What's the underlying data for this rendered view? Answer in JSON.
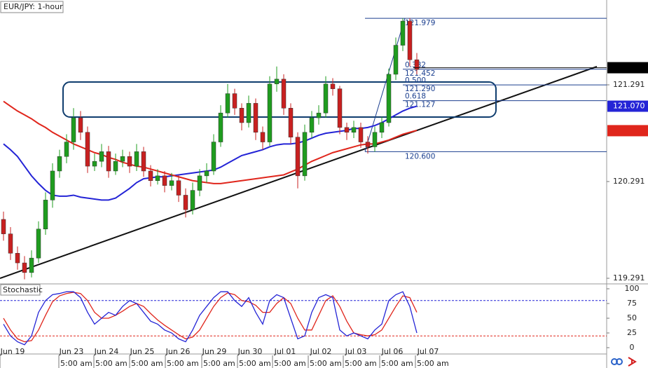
{
  "chart_data": {
    "type": "candlestick",
    "title": "EUR/JPY: 1-hour",
    "up_color": "#1f9c1f",
    "down_color": "#c82020",
    "candles": [
      [
        119.9,
        119.98,
        119.68,
        119.75
      ],
      [
        119.75,
        119.82,
        119.48,
        119.55
      ],
      [
        119.55,
        119.62,
        119.38,
        119.45
      ],
      [
        119.45,
        119.52,
        119.28,
        119.35
      ],
      [
        119.35,
        119.58,
        119.3,
        119.5
      ],
      [
        119.5,
        119.88,
        119.45,
        119.8
      ],
      [
        119.8,
        120.18,
        119.74,
        120.1
      ],
      [
        120.1,
        120.48,
        120.02,
        120.4
      ],
      [
        120.4,
        120.62,
        120.33,
        120.55
      ],
      [
        120.55,
        120.78,
        120.48,
        120.7
      ],
      [
        120.7,
        121.05,
        120.62,
        120.95
      ],
      [
        120.95,
        121.02,
        120.72,
        120.8
      ],
      [
        120.8,
        120.86,
        120.38,
        120.45
      ],
      [
        120.45,
        120.58,
        120.4,
        120.5
      ],
      [
        120.5,
        120.68,
        120.44,
        120.6
      ],
      [
        120.6,
        120.66,
        120.33,
        120.4
      ],
      [
        120.4,
        120.58,
        120.36,
        120.5
      ],
      [
        120.5,
        120.62,
        120.44,
        120.55
      ],
      [
        120.55,
        120.6,
        120.38,
        120.45
      ],
      [
        120.45,
        120.68,
        120.4,
        120.6
      ],
      [
        120.6,
        120.65,
        120.34,
        120.4
      ],
      [
        120.4,
        120.46,
        120.24,
        120.3
      ],
      [
        120.3,
        120.42,
        120.26,
        120.35
      ],
      [
        120.35,
        120.4,
        120.18,
        120.25
      ],
      [
        120.25,
        120.38,
        120.2,
        120.3
      ],
      [
        120.3,
        120.36,
        120.08,
        120.15
      ],
      [
        120.15,
        120.22,
        119.92,
        120.0
      ],
      [
        120.0,
        120.28,
        119.95,
        120.2
      ],
      [
        120.2,
        120.42,
        120.14,
        120.35
      ],
      [
        120.35,
        120.48,
        120.28,
        120.4
      ],
      [
        120.4,
        120.78,
        120.36,
        120.7
      ],
      [
        120.7,
        121.08,
        120.65,
        121.0
      ],
      [
        121.0,
        121.3,
        120.95,
        121.2
      ],
      [
        121.2,
        121.25,
        120.98,
        121.05
      ],
      [
        121.05,
        121.1,
        120.82,
        120.9
      ],
      [
        120.9,
        121.18,
        120.85,
        121.1
      ],
      [
        121.1,
        121.15,
        120.72,
        120.8
      ],
      [
        120.8,
        120.86,
        120.62,
        120.7
      ],
      [
        120.7,
        121.38,
        120.66,
        121.3
      ],
      [
        121.3,
        121.48,
        121.22,
        121.35
      ],
      [
        121.35,
        121.4,
        120.98,
        121.05
      ],
      [
        121.05,
        121.1,
        120.68,
        120.75
      ],
      [
        120.75,
        120.8,
        120.22,
        120.35
      ],
      [
        120.35,
        120.88,
        120.3,
        120.8
      ],
      [
        120.8,
        121.02,
        120.74,
        120.95
      ],
      [
        120.95,
        121.08,
        120.88,
        121.0
      ],
      [
        121.0,
        121.38,
        120.95,
        121.3
      ],
      [
        121.3,
        121.36,
        121.18,
        121.25
      ],
      [
        121.25,
        121.28,
        120.78,
        120.85
      ],
      [
        120.85,
        120.9,
        120.72,
        120.8
      ],
      [
        120.8,
        120.92,
        120.74,
        120.85
      ],
      [
        120.85,
        120.9,
        120.64,
        120.7
      ],
      [
        120.7,
        120.76,
        120.58,
        120.65
      ],
      [
        120.65,
        120.86,
        120.6,
        120.8
      ],
      [
        120.8,
        120.96,
        120.74,
        120.9
      ],
      [
        120.9,
        121.46,
        120.86,
        121.4
      ],
      [
        121.4,
        121.78,
        121.34,
        121.7
      ],
      [
        121.7,
        121.98,
        121.64,
        121.95
      ],
      [
        121.95,
        121.98,
        121.48,
        121.55
      ],
      [
        121.55,
        121.62,
        121.4,
        121.45
      ]
    ],
    "moving_averages": [
      {
        "color": "#2424d6",
        "values": [
          120.68,
          120.62,
          120.55,
          120.45,
          120.35,
          120.27,
          120.2,
          120.15,
          120.14,
          120.14,
          120.15,
          120.13,
          120.12,
          120.11,
          120.1,
          120.1,
          120.12,
          120.17,
          120.22,
          120.28,
          120.32,
          120.33,
          120.34,
          120.34,
          120.35,
          120.36,
          120.37,
          120.38,
          120.39,
          120.4,
          120.41,
          120.44,
          120.48,
          120.52,
          120.56,
          120.58,
          120.6,
          120.62,
          120.65,
          120.67,
          120.68,
          120.68,
          120.69,
          120.71,
          120.74,
          120.77,
          120.79,
          120.8,
          120.81,
          120.82,
          120.84,
          120.84,
          120.85,
          120.87,
          120.9,
          120.94,
          120.98,
          121.02,
          121.05,
          121.07
        ]
      },
      {
        "color": "#e0261c",
        "values": [
          121.12,
          121.07,
          121.02,
          120.98,
          120.94,
          120.89,
          120.85,
          120.8,
          120.76,
          120.72,
          120.68,
          120.65,
          120.62,
          120.59,
          120.57,
          120.54,
          120.52,
          120.49,
          120.47,
          120.45,
          120.44,
          120.42,
          120.4,
          120.38,
          120.36,
          120.34,
          120.32,
          120.3,
          120.29,
          120.28,
          120.27,
          120.27,
          120.28,
          120.29,
          120.3,
          120.31,
          120.32,
          120.33,
          120.34,
          120.35,
          120.36,
          120.39,
          120.42,
          120.46,
          120.5,
          120.53,
          120.56,
          120.59,
          120.61,
          120.63,
          120.65,
          120.67,
          120.68,
          120.68,
          120.7,
          120.72,
          120.75,
          120.78,
          120.8,
          120.82
        ]
      }
    ],
    "ylim": [
      119.233,
      122.168
    ],
    "yticks": [
      121.291,
      120.291,
      119.291
    ],
    "price_tags": [
      {
        "value": 121.468,
        "color": "#000000"
      },
      {
        "value": 121.07,
        "label": "121.070",
        "color": "#2424d6"
      },
      {
        "value": 120.817,
        "color": "#e0261c"
      }
    ],
    "fibonacci": {
      "high": 121.979,
      "low": {
        "value": 120.6,
        "label": "120.600"
      },
      "levels": [
        {
          "ratio": 0.382,
          "price": 121.452
        },
        {
          "ratio": {
            "value": 0.5,
            "label": "0.500"
          },
          "price": {
            "value": 121.29,
            "label": "121.290"
          }
        },
        {
          "ratio": 0.618,
          "price": 121.127
        }
      ]
    },
    "stochastic": {
      "title": "Stochastic",
      "ylim": [
        -10.7,
        108.3
      ],
      "yticks": [
        100,
        75,
        50,
        25,
        0
      ],
      "overbought": 80,
      "oversold": 20,
      "k": {
        "color": "#2424d6",
        "values": [
          40,
          20,
          10,
          5,
          20,
          60,
          80,
          90,
          92,
          95,
          95,
          85,
          60,
          40,
          50,
          60,
          55,
          70,
          80,
          75,
          60,
          45,
          40,
          30,
          25,
          15,
          10,
          30,
          55,
          70,
          85,
          95,
          95,
          80,
          70,
          85,
          60,
          40,
          80,
          90,
          85,
          50,
          15,
          20,
          60,
          85,
          90,
          85,
          30,
          20,
          25,
          20,
          15,
          30,
          40,
          80,
          90,
          95,
          70,
          25
        ]
      },
      "d": {
        "color": "#e0261c",
        "values": [
          50,
          30,
          15,
          10,
          12,
          30,
          55,
          78,
          88,
          92,
          94,
          92,
          80,
          60,
          50,
          50,
          55,
          62,
          70,
          75,
          70,
          58,
          47,
          38,
          30,
          22,
          15,
          18,
          30,
          50,
          70,
          85,
          93,
          90,
          80,
          78,
          72,
          60,
          60,
          75,
          85,
          75,
          50,
          30,
          30,
          55,
          80,
          88,
          70,
          45,
          25,
          22,
          20,
          22,
          30,
          50,
          70,
          88,
          85,
          60
        ]
      }
    },
    "dates": [
      "Jun 19",
      "Jun 23",
      "Jun 24",
      "Jun 25",
      "Jun 26",
      "Jun 29",
      "Jun 30",
      "Jul 01",
      "Jul 02",
      "Jul 03",
      "Jul 06",
      "Jul 07"
    ],
    "times": [
      "5:00 am",
      "5:00 am",
      "5:00 am",
      "5:00 am",
      "5:00 am",
      "5:00 am",
      "5:00 am",
      "5:00 am",
      "5:00 am",
      "5:00 am",
      "5:00 am"
    ]
  }
}
